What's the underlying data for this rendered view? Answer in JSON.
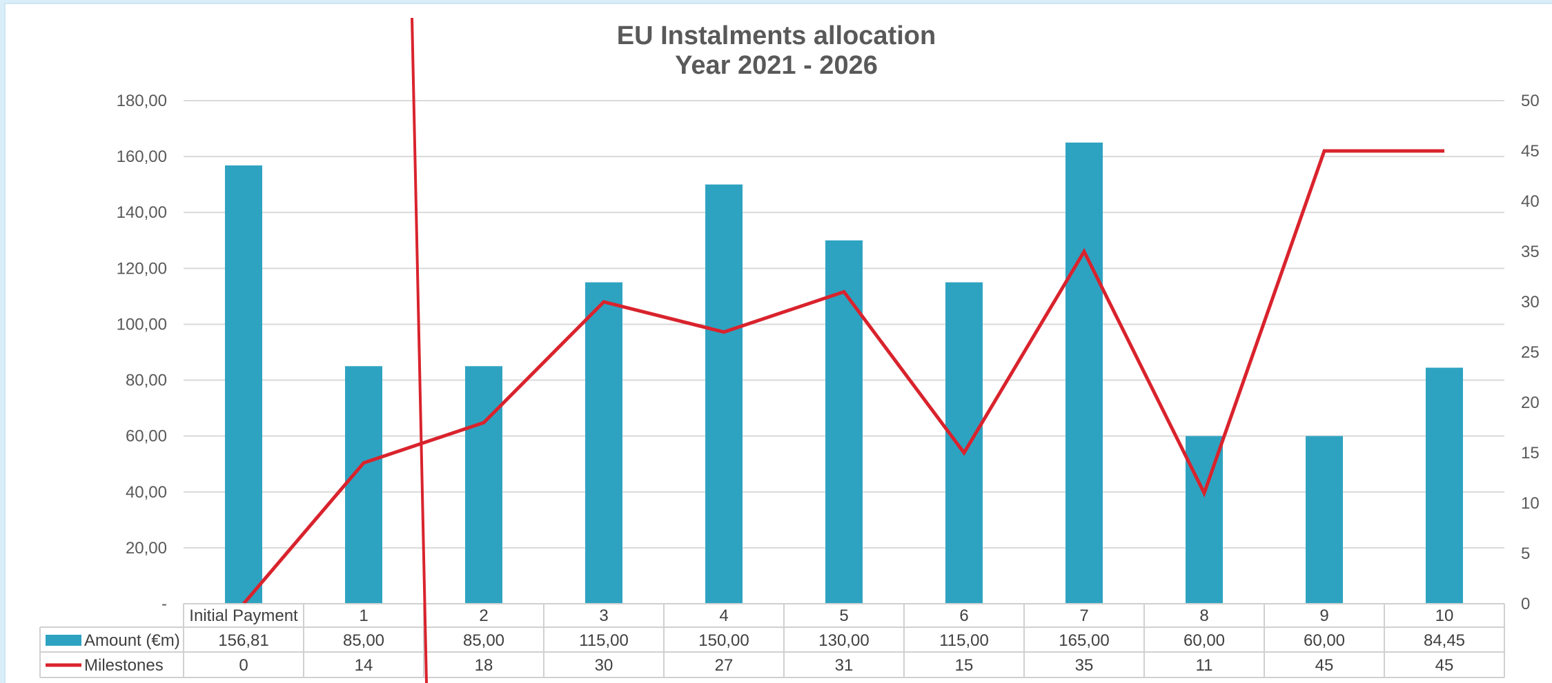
{
  "chart_data": {
    "type": "bar",
    "title": "EU Instalments allocation",
    "subtitle": "Year 2021 - 2026",
    "categories": [
      "Initial Payment",
      "1",
      "2",
      "3",
      "4",
      "5",
      "6",
      "7",
      "8",
      "9",
      "10"
    ],
    "series": [
      {
        "name": "Amount (€m)",
        "type": "bar",
        "axis": "left",
        "color": "#2ea3c1",
        "values": [
          156.81,
          85.0,
          85.0,
          115.0,
          150.0,
          130.0,
          115.0,
          165.0,
          60.0,
          60.0,
          84.45
        ],
        "labels": [
          "156,81",
          "85,00",
          "85,00",
          "115,00",
          "150,00",
          "130,00",
          "115,00",
          "165,00",
          "60,00",
          "60,00",
          "84,45"
        ]
      },
      {
        "name": "Milestones",
        "type": "line",
        "axis": "right",
        "color": "#d9232d",
        "values": [
          0,
          14,
          18,
          30,
          27,
          31,
          15,
          35,
          11,
          45,
          45
        ],
        "labels": [
          "0",
          "14",
          "18",
          "30",
          "27",
          "31",
          "15",
          "35",
          "11",
          "45",
          "45"
        ]
      }
    ],
    "y_left": {
      "ylim": [
        0,
        180
      ],
      "ticks": [
        0,
        20,
        40,
        60,
        80,
        100,
        120,
        140,
        160,
        180
      ],
      "tick_labels": [
        "-",
        "20,00",
        "40,00",
        "60,00",
        "80,00",
        "100,00",
        "120,00",
        "140,00",
        "160,00",
        "180,00"
      ]
    },
    "y_right": {
      "ylim": [
        0,
        50
      ],
      "ticks": [
        0,
        5,
        10,
        15,
        20,
        25,
        30,
        35,
        40,
        45,
        50
      ],
      "tick_labels": [
        "0",
        "5",
        "10",
        "15",
        "20",
        "25",
        "30",
        "35",
        "40",
        "45",
        "50"
      ]
    },
    "grid": true,
    "data_table": true,
    "annotation": "red vertical line crossing the plot between categories 1 and 2"
  }
}
